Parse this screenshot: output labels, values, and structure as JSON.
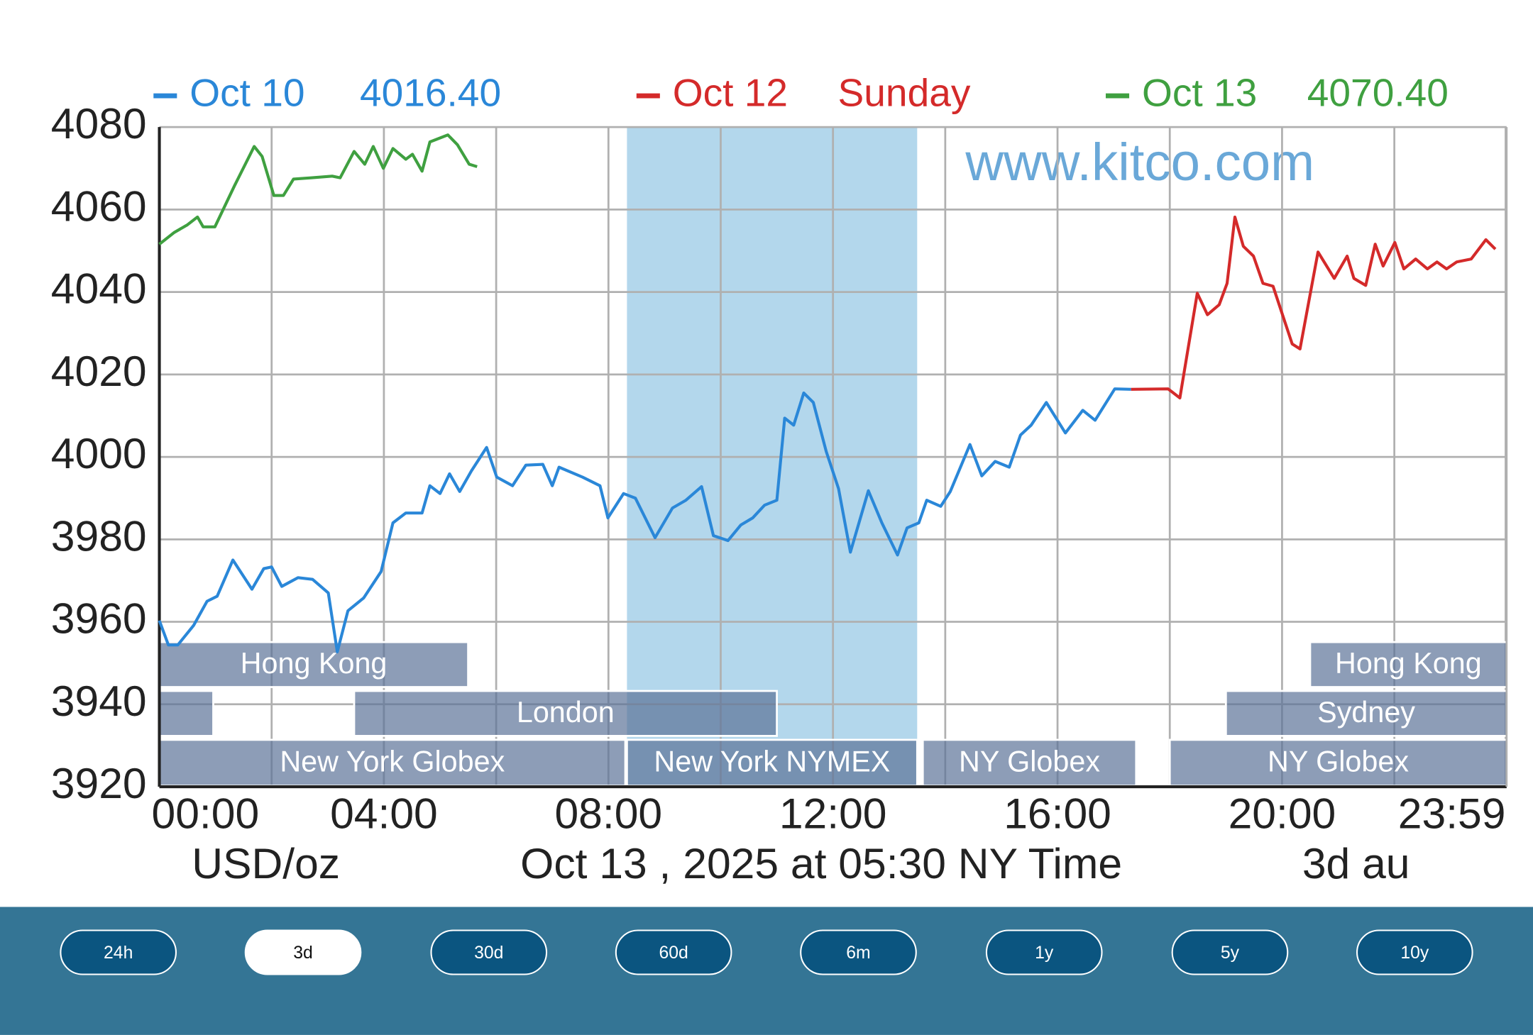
{
  "chart_data": {
    "type": "line",
    "watermark": "www.kitco.com",
    "xlim": [
      0,
      24
    ],
    "xticks": [
      {
        "value": 0,
        "label": "00:00"
      },
      {
        "value": 2,
        "label": null
      },
      {
        "value": 4,
        "label": "04:00"
      },
      {
        "value": 6,
        "label": null
      },
      {
        "value": 8,
        "label": "08:00"
      },
      {
        "value": 10,
        "label": null
      },
      {
        "value": 12,
        "label": "12:00"
      },
      {
        "value": 14,
        "label": null
      },
      {
        "value": 16,
        "label": "16:00"
      },
      {
        "value": 18,
        "label": null
      },
      {
        "value": 20,
        "label": "20:00"
      },
      {
        "value": 22,
        "label": null
      },
      {
        "value": 23.983,
        "label": "23:59"
      }
    ],
    "ylim": [
      3920,
      4080
    ],
    "yticks": [
      3920,
      3940,
      3960,
      3980,
      4000,
      4020,
      4040,
      4060,
      4080
    ],
    "grid": true,
    "series": [
      {
        "name": "Oct 10",
        "legend_value": "4016.40",
        "color": "#2a87d8",
        "x": [
          0,
          0.16,
          0.33,
          0.61,
          0.85,
          1.03,
          1.31,
          1.65,
          1.86,
          2.0,
          2.18,
          2.47,
          2.73,
          3.01,
          3.17,
          3.36,
          3.64,
          3.95,
          4.16,
          4.39,
          4.68,
          4.82,
          5.0,
          5.17,
          5.35,
          5.56,
          5.83,
          6.01,
          6.29,
          6.53,
          6.83,
          7.0,
          7.12,
          7.54,
          7.85,
          7.99,
          8.27,
          8.48,
          8.83,
          9.14,
          9.38,
          9.66,
          9.87,
          10.13,
          10.36,
          10.57,
          10.78,
          11.0,
          11.14,
          11.3,
          11.48,
          11.65,
          11.88,
          12.1,
          12.31,
          12.63,
          12.87,
          13.15,
          13.32,
          13.53,
          13.67,
          13.92,
          14.09,
          14.44,
          14.65,
          14.89,
          15.14,
          15.34,
          15.53,
          15.8,
          16.14,
          16.45,
          16.67,
          17.02,
          17.31
        ],
        "values": [
          3960.3,
          3954.4,
          3954.4,
          3959.1,
          3965,
          3966.2,
          3975,
          3967.9,
          3972.9,
          3973.3,
          3968.6,
          3970.7,
          3970.3,
          3967,
          3952.7,
          3962.7,
          3965.8,
          3972.2,
          3984,
          3986.4,
          3986.4,
          3993,
          3991.1,
          3995.9,
          3991.6,
          3996.6,
          4002.3,
          3995.1,
          3993,
          3998,
          3998.2,
          3993,
          3997.5,
          3995.1,
          3993,
          3985.2,
          3991.1,
          3990,
          3980.4,
          3987.6,
          3989.5,
          3992.8,
          3980.9,
          3979.7,
          3983.5,
          3985.2,
          3988.3,
          3989.5,
          4009.4,
          4007.7,
          4015.5,
          4013.2,
          4001.3,
          3992.3,
          3976.9,
          3991.8,
          3984,
          3976.2,
          3982.8,
          3984,
          3989.5,
          3988,
          3991.6,
          4003,
          3995.4,
          3998.9,
          3997.5,
          4005.3,
          4007.7,
          4013.2,
          4005.8,
          4011.3,
          4008.9,
          4016.5,
          4016.4
        ]
      },
      {
        "name": "Oct 12",
        "legend_value": "Sunday",
        "color": "#d42a2a",
        "x": [
          17.31,
          17.97,
          18.18,
          18.49,
          18.67,
          18.88,
          19.02,
          19.16,
          19.31,
          19.49,
          19.66,
          19.84,
          20.18,
          20.32,
          20.64,
          20.93,
          21.16,
          21.28,
          21.49,
          21.66,
          21.8,
          22.01,
          22.17,
          22.38,
          22.59,
          22.76,
          22.93,
          23.11,
          23.37,
          23.63,
          23.8
        ],
        "values": [
          4016.4,
          4016.5,
          4014.3,
          4039.7,
          4034.5,
          4036.9,
          4042.1,
          4058.2,
          4051.1,
          4048.7,
          4042.1,
          4041.4,
          4027.4,
          4026.2,
          4049.7,
          4043.3,
          4048.7,
          4043.3,
          4041.6,
          4051.6,
          4046.3,
          4052,
          4045.6,
          4048,
          4045.6,
          4047.3,
          4045.6,
          4047.3,
          4048,
          4052.7,
          4050.4
        ]
      },
      {
        "name": "Oct 13",
        "legend_value": "4070.40",
        "color": "#3fa040",
        "x": [
          0,
          0.26,
          0.5,
          0.68,
          0.78,
          0.99,
          1.34,
          1.69,
          1.83,
          2.04,
          2.21,
          2.39,
          2.7,
          3.08,
          3.22,
          3.47,
          3.66,
          3.81,
          3.99,
          4.16,
          4.39,
          4.51,
          4.68,
          4.82,
          5.14,
          5.31,
          5.52,
          5.66
        ],
        "values": [
          4051.6,
          4054.4,
          4056.3,
          4058.2,
          4055.8,
          4055.8,
          4065.8,
          4075.3,
          4072.9,
          4063.4,
          4063.4,
          4067.4,
          4067.7,
          4068.1,
          4067.7,
          4074.1,
          4071,
          4075.3,
          4070,
          4074.8,
          4072.2,
          4073.4,
          4069.3,
          4076.4,
          4078.1,
          4075.7,
          4071,
          4070.4
        ]
      }
    ],
    "sessions": [
      {
        "label": "Hong Kong",
        "start": 0,
        "end": 5.5
      },
      {
        "label": null,
        "start": 0,
        "end": 0.96
      },
      {
        "label": "London",
        "start": 3.47,
        "end": 11.0
      },
      {
        "label": "New York Globex",
        "start": 0,
        "end": 8.3
      },
      {
        "label": "New York NYMEX",
        "start": 8.33,
        "end": 13.5
      },
      {
        "label": "NY Globex",
        "start": 13.6,
        "end": 17.4
      },
      {
        "label": "NY Globex",
        "start": 18,
        "end": 24
      },
      {
        "label": "Hong Kong",
        "start": 20.5,
        "end": 24
      },
      {
        "label": "Sydney",
        "start": 19,
        "end": 24
      }
    ],
    "footer": {
      "unit": "USD/oz",
      "timestamp": "Oct 13 , 2025 at 05:30 NY Time",
      "period": "3d au"
    }
  },
  "buttons": [
    "24h",
    "3d",
    "30d",
    "60d",
    "6m",
    "1y",
    "5y",
    "10y"
  ],
  "active_button": "3d"
}
